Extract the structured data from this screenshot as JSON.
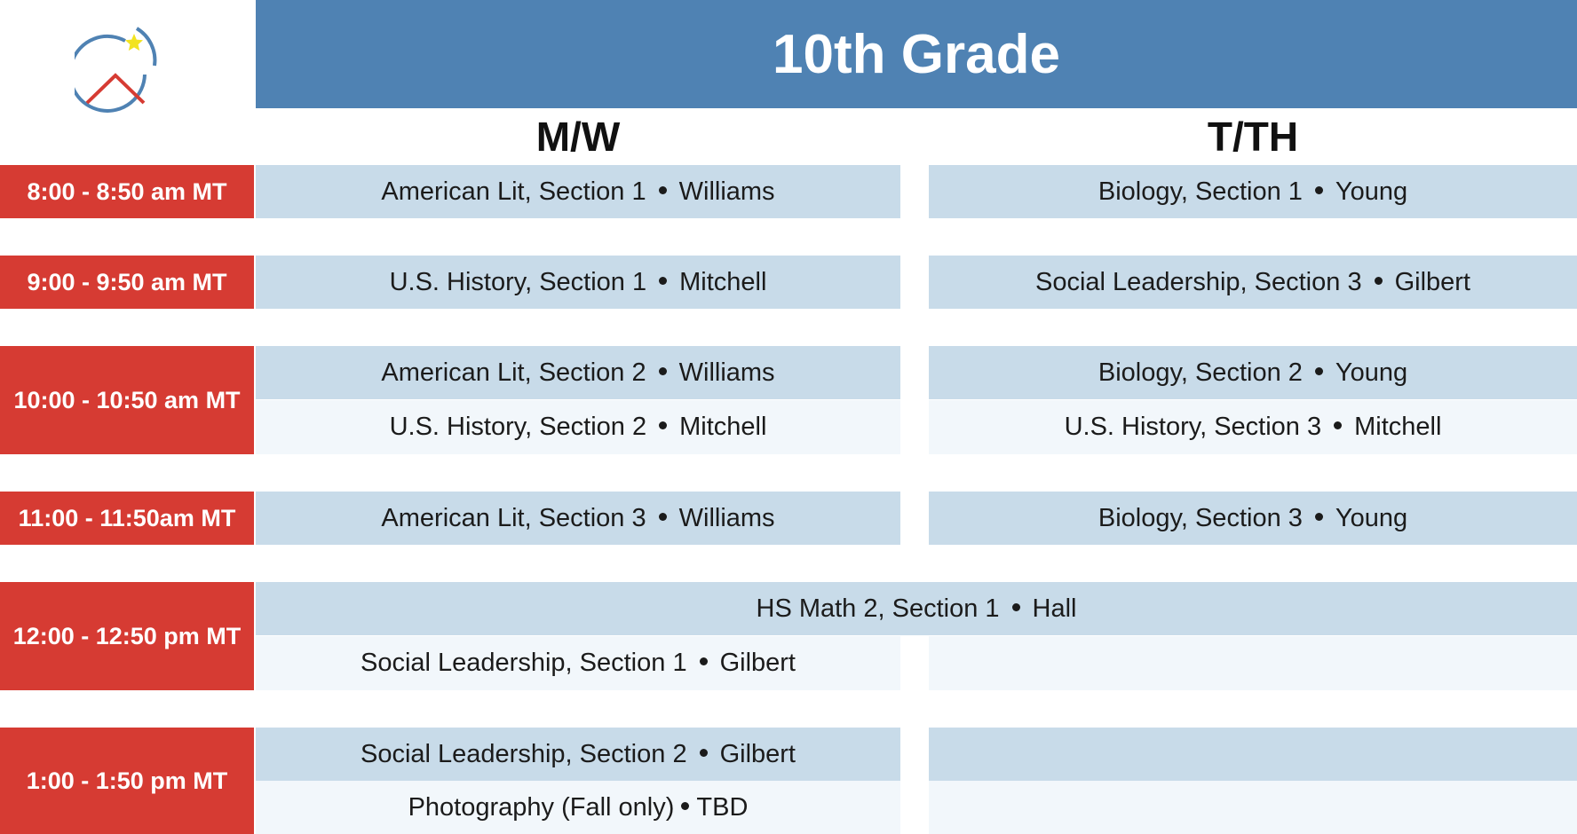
{
  "header": {
    "title": "10th Grade"
  },
  "columns": {
    "mw": "M/W",
    "tth": "T/TH"
  },
  "separator": "•",
  "colors": {
    "title_bar": "#4f82b3",
    "time_slot": "#d63b33",
    "cell_dark": "#c8dbe9",
    "cell_light": "#f2f7fb"
  },
  "logo": {
    "icon": "circle-house-star-icon"
  },
  "rows": [
    {
      "time": "8:00 -  8:50 am MT",
      "mw": [
        {
          "course": "American Lit, Section 1",
          "teacher": "Williams"
        }
      ],
      "tth": [
        {
          "course": "Biology, Section 1",
          "teacher": "Young"
        }
      ]
    },
    {
      "time": "9:00 -  9:50 am MT",
      "mw": [
        {
          "course": "U.S. History, Section 1",
          "teacher": "Mitchell"
        }
      ],
      "tth": [
        {
          "course": "Social Leadership, Section 3",
          "teacher": "Gilbert"
        }
      ]
    },
    {
      "time": "10:00 - 10:50 am MT",
      "mw": [
        {
          "course": "American Lit, Section 2",
          "teacher": "Williams"
        },
        {
          "course": "U.S. History, Section 2",
          "teacher": "Mitchell"
        }
      ],
      "tth": [
        {
          "course": "Biology, Section 2",
          "teacher": "Young"
        },
        {
          "course": "U.S. History, Section 3",
          "teacher": "Mitchell"
        }
      ]
    },
    {
      "time": "11:00 - 11:50am MT",
      "mw": [
        {
          "course": "American Lit, Section 3",
          "teacher": "Williams"
        }
      ],
      "tth": [
        {
          "course": "Biology, Section 3",
          "teacher": "Young"
        }
      ]
    },
    {
      "time": "12:00 - 12:50 pm MT",
      "full": {
        "course": "HS Math 2, Section 1",
        "teacher": "Hall"
      },
      "mw": [
        {
          "course": "Social Leadership, Section 1",
          "teacher": "Gilbert"
        }
      ]
    },
    {
      "time": "1:00 - 1:50 pm MT",
      "mw": [
        {
          "course": "Social Leadership, Section 2",
          "teacher": "Gilbert"
        },
        {
          "course": "Photography (Fall only)",
          "teacher": "TBD"
        }
      ]
    }
  ]
}
